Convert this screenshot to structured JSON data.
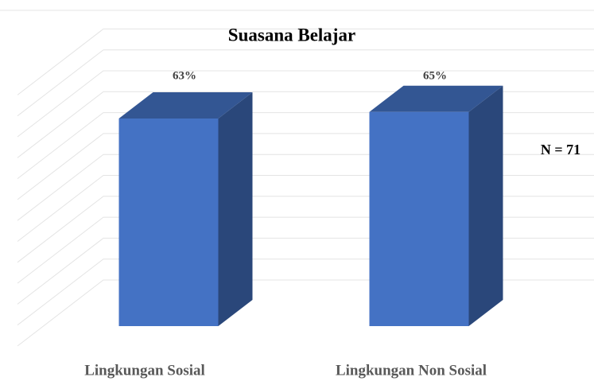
{
  "chart_data": {
    "type": "bar3d",
    "title": "Suasana Belajar",
    "categories": [
      "Lingkungan Sosial",
      "Lingkungan Non Sosial"
    ],
    "values": [
      63,
      65
    ],
    "value_labels": [
      "63%",
      "65%"
    ],
    "color": "#4472c4",
    "ylim": [
      0,
      70
    ],
    "annotation": "N = 71"
  }
}
